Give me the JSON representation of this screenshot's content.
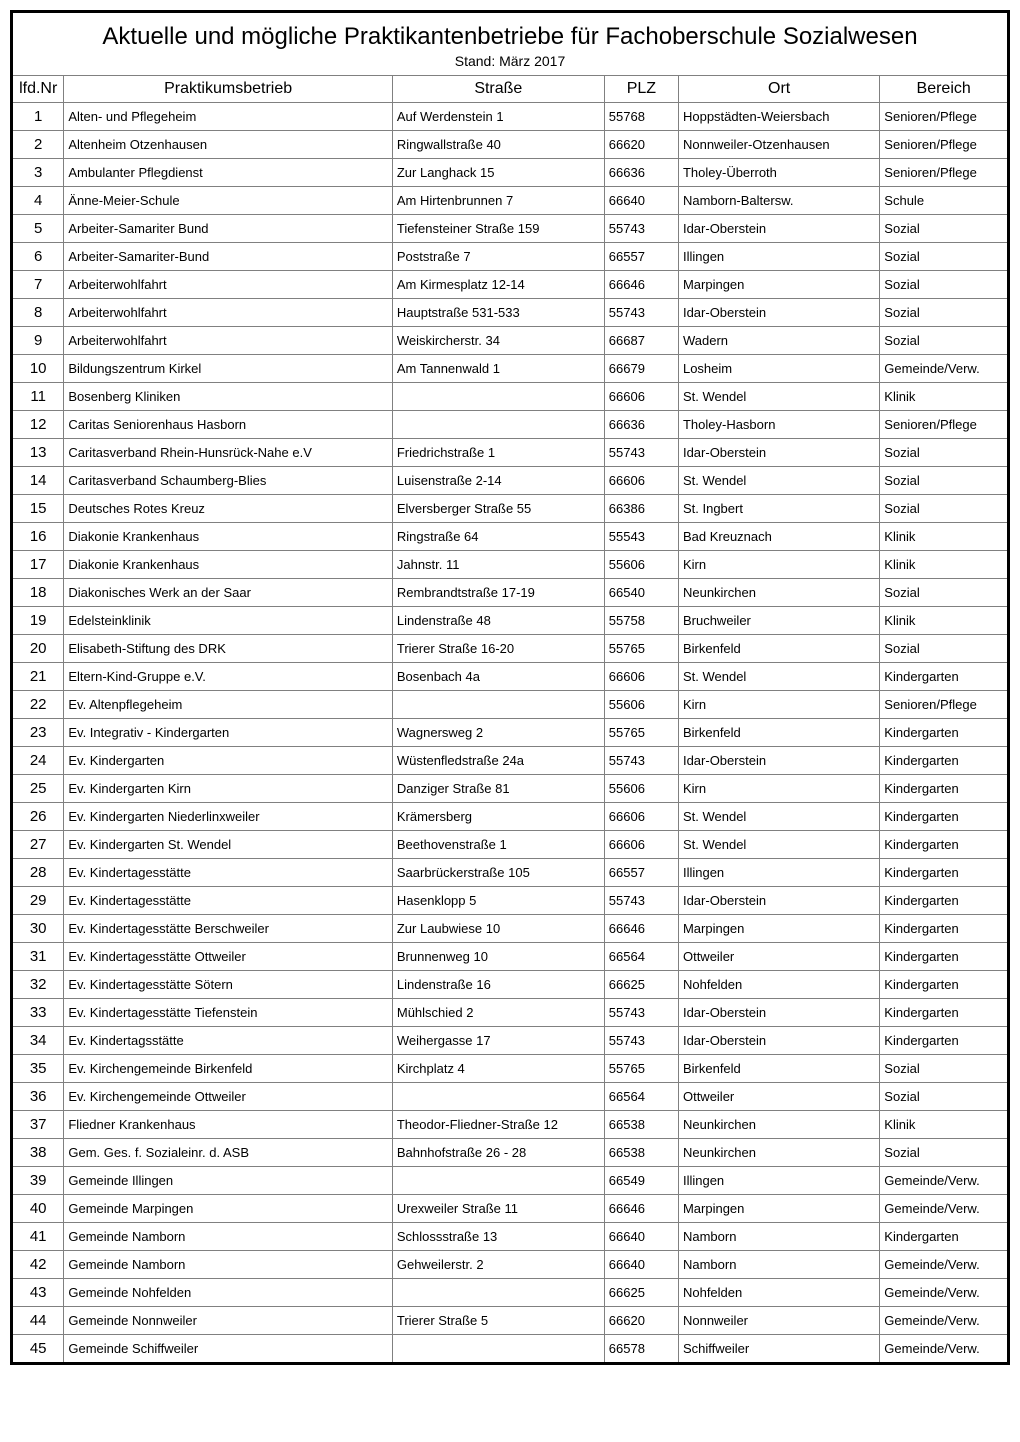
{
  "title": "Aktuelle und mögliche Praktikantenbetriebe für Fachoberschule Sozialwesen",
  "subtitle": "Stand: März 2017",
  "columns": {
    "nr": "lfd.Nr",
    "name": "Praktikumsbetrieb",
    "street": "Straße",
    "plz": "PLZ",
    "ort": "Ort",
    "bereich": "Bereich"
  },
  "rows": [
    {
      "nr": "1",
      "name": "Alten- und Pflegeheim",
      "street": "Auf Werdenstein 1",
      "plz": "55768",
      "ort": "Hoppstädten-Weiersbach",
      "bereich": "Senioren/Pflege"
    },
    {
      "nr": "2",
      "name": "Altenheim Otzenhausen",
      "street": "Ringwallstraße 40",
      "plz": "66620",
      "ort": "Nonnweiler-Otzenhausen",
      "bereich": "Senioren/Pflege"
    },
    {
      "nr": "3",
      "name": "Ambulanter Pflegdienst",
      "street": "Zur Langhack 15",
      "plz": "66636",
      "ort": "Tholey-Überroth",
      "bereich": "Senioren/Pflege"
    },
    {
      "nr": "4",
      "name": "Änne-Meier-Schule",
      "street": "Am Hirtenbrunnen 7",
      "plz": "66640",
      "ort": "Namborn-Baltersw.",
      "bereich": "Schule"
    },
    {
      "nr": "5",
      "name": "Arbeiter-Samariter Bund",
      "street": "Tiefensteiner Straße 159",
      "plz": "55743",
      "ort": "Idar-Oberstein",
      "bereich": "Sozial"
    },
    {
      "nr": "6",
      "name": "Arbeiter-Samariter-Bund",
      "street": "Poststraße 7",
      "plz": "66557",
      "ort": "Illingen",
      "bereich": "Sozial"
    },
    {
      "nr": "7",
      "name": "Arbeiterwohlfahrt",
      "street": "Am Kirmesplatz 12-14",
      "plz": "66646",
      "ort": "Marpingen",
      "bereich": "Sozial"
    },
    {
      "nr": "8",
      "name": "Arbeiterwohlfahrt",
      "street": "Hauptstraße 531-533",
      "plz": "55743",
      "ort": "Idar-Oberstein",
      "bereich": "Sozial"
    },
    {
      "nr": "9",
      "name": "Arbeiterwohlfahrt",
      "street": "Weiskircherstr. 34",
      "plz": "66687",
      "ort": "Wadern",
      "bereich": "Sozial"
    },
    {
      "nr": "10",
      "name": "Bildungszentrum Kirkel",
      "street": "Am Tannenwald 1",
      "plz": "66679",
      "ort": "Losheim",
      "bereich": "Gemeinde/Verw."
    },
    {
      "nr": "11",
      "name": "Bosenberg Kliniken",
      "street": "",
      "plz": "66606",
      "ort": "St. Wendel",
      "bereich": "Klinik"
    },
    {
      "nr": "12",
      "name": "Caritas Seniorenhaus Hasborn",
      "street": "",
      "plz": "66636",
      "ort": "Tholey-Hasborn",
      "bereich": "Senioren/Pflege"
    },
    {
      "nr": "13",
      "name": "Caritasverband Rhein-Hunsrück-Nahe e.V",
      "street": "Friedrichstraße 1",
      "plz": "55743",
      "ort": "Idar-Oberstein",
      "bereich": "Sozial"
    },
    {
      "nr": "14",
      "name": "Caritasverband Schaumberg-Blies",
      "street": "Luisenstraße 2-14",
      "plz": "66606",
      "ort": "St. Wendel",
      "bereich": "Sozial"
    },
    {
      "nr": "15",
      "name": "Deutsches Rotes Kreuz",
      "street": "Elversberger Straße 55",
      "plz": "66386",
      "ort": "St. Ingbert",
      "bereich": "Sozial"
    },
    {
      "nr": "16",
      "name": "Diakonie Krankenhaus",
      "street": "Ringstraße 64",
      "plz": "55543",
      "ort": "Bad Kreuznach",
      "bereich": "Klinik"
    },
    {
      "nr": "17",
      "name": "Diakonie Krankenhaus",
      "street": "Jahnstr. 11",
      "plz": "55606",
      "ort": "Kirn",
      "bereich": "Klinik"
    },
    {
      "nr": "18",
      "name": "Diakonisches Werk an der Saar",
      "street": "Rembrandtstraße 17-19",
      "plz": "66540",
      "ort": "Neunkirchen",
      "bereich": "Sozial"
    },
    {
      "nr": "19",
      "name": "Edelsteinklinik",
      "street": "Lindenstraße 48",
      "plz": "55758",
      "ort": "Bruchweiler",
      "bereich": "Klinik"
    },
    {
      "nr": "20",
      "name": "Elisabeth-Stiftung des DRK",
      "street": "Trierer Straße 16-20",
      "plz": "55765",
      "ort": "Birkenfeld",
      "bereich": "Sozial"
    },
    {
      "nr": "21",
      "name": "Eltern-Kind-Gruppe e.V.",
      "street": "Bosenbach 4a",
      "plz": "66606",
      "ort": "St. Wendel",
      "bereich": "Kindergarten"
    },
    {
      "nr": "22",
      "name": "Ev. Altenpflegeheim",
      "street": "",
      "plz": "55606",
      "ort": "Kirn",
      "bereich": "Senioren/Pflege"
    },
    {
      "nr": "23",
      "name": "Ev. Integrativ - Kindergarten",
      "street": "Wagnersweg 2",
      "plz": "55765",
      "ort": "Birkenfeld",
      "bereich": "Kindergarten"
    },
    {
      "nr": "24",
      "name": "Ev. Kindergarten",
      "street": "Wüstenfledstraße 24a",
      "plz": "55743",
      "ort": "Idar-Oberstein",
      "bereich": "Kindergarten"
    },
    {
      "nr": "25",
      "name": "Ev. Kindergarten Kirn",
      "street": "Danziger Straße 81",
      "plz": "55606",
      "ort": "Kirn",
      "bereich": "Kindergarten"
    },
    {
      "nr": "26",
      "name": "Ev. Kindergarten Niederlinxweiler",
      "street": "Krämersberg",
      "plz": "66606",
      "ort": "St. Wendel",
      "bereich": "Kindergarten"
    },
    {
      "nr": "27",
      "name": "Ev. Kindergarten St. Wendel",
      "street": "Beethovenstraße 1",
      "plz": "66606",
      "ort": "St. Wendel",
      "bereich": "Kindergarten"
    },
    {
      "nr": "28",
      "name": "Ev. Kindertagesstätte",
      "street": "Saarbrückerstraße 105",
      "plz": "66557",
      "ort": "Illingen",
      "bereich": "Kindergarten"
    },
    {
      "nr": "29",
      "name": "Ev. Kindertagesstätte",
      "street": "Hasenklopp 5",
      "plz": "55743",
      "ort": "Idar-Oberstein",
      "bereich": "Kindergarten"
    },
    {
      "nr": "30",
      "name": "Ev. Kindertagesstätte Berschweiler",
      "street": "Zur Laubwiese 10",
      "plz": "66646",
      "ort": "Marpingen",
      "bereich": "Kindergarten"
    },
    {
      "nr": "31",
      "name": "Ev. Kindertagesstätte Ottweiler",
      "street": "Brunnenweg 10",
      "plz": "66564",
      "ort": "Ottweiler",
      "bereich": "Kindergarten"
    },
    {
      "nr": "32",
      "name": "Ev. Kindertagesstätte Sötern",
      "street": "Lindenstraße 16",
      "plz": "66625",
      "ort": "Nohfelden",
      "bereich": "Kindergarten"
    },
    {
      "nr": "33",
      "name": "Ev. Kindertagesstätte Tiefenstein",
      "street": "Mühlschied 2",
      "plz": "55743",
      "ort": "Idar-Oberstein",
      "bereich": "Kindergarten"
    },
    {
      "nr": "34",
      "name": "Ev. Kindertagsstätte",
      "street": "Weihergasse 17",
      "plz": "55743",
      "ort": "Idar-Oberstein",
      "bereich": "Kindergarten"
    },
    {
      "nr": "35",
      "name": "Ev. Kirchengemeinde Birkenfeld",
      "street": "Kirchplatz 4",
      "plz": "55765",
      "ort": "Birkenfeld",
      "bereich": "Sozial"
    },
    {
      "nr": "36",
      "name": "Ev. Kirchengemeinde Ottweiler",
      "street": "",
      "plz": "66564",
      "ort": "Ottweiler",
      "bereich": "Sozial"
    },
    {
      "nr": "37",
      "name": "Fliedner Krankenhaus",
      "street": "Theodor-Fliedner-Straße 12",
      "plz": "66538",
      "ort": "Neunkirchen",
      "bereich": "Klinik"
    },
    {
      "nr": "38",
      "name": "Gem. Ges. f. Sozialeinr. d. ASB",
      "street": "Bahnhofstraße 26 - 28",
      "plz": "66538",
      "ort": "Neunkirchen",
      "bereich": "Sozial"
    },
    {
      "nr": "39",
      "name": "Gemeinde Illingen",
      "street": "",
      "plz": "66549",
      "ort": "Illingen",
      "bereich": "Gemeinde/Verw."
    },
    {
      "nr": "40",
      "name": "Gemeinde Marpingen",
      "street": "Urexweiler Straße 11",
      "plz": "66646",
      "ort": "Marpingen",
      "bereich": "Gemeinde/Verw."
    },
    {
      "nr": "41",
      "name": "Gemeinde Namborn",
      "street": "Schlossstraße 13",
      "plz": "66640",
      "ort": "Namborn",
      "bereich": "Kindergarten"
    },
    {
      "nr": "42",
      "name": "Gemeinde Namborn",
      "street": "Gehweilerstr. 2",
      "plz": "66640",
      "ort": "Namborn",
      "bereich": "Gemeinde/Verw."
    },
    {
      "nr": "43",
      "name": "Gemeinde Nohfelden",
      "street": "",
      "plz": "66625",
      "ort": "Nohfelden",
      "bereich": "Gemeinde/Verw."
    },
    {
      "nr": "44",
      "name": "Gemeinde Nonnweiler",
      "street": "Trierer Straße 5",
      "plz": "66620",
      "ort": "Nonnweiler",
      "bereich": "Gemeinde/Verw."
    },
    {
      "nr": "45",
      "name": "Gemeinde Schiffweiler",
      "street": "",
      "plz": "66578",
      "ort": "Schiffweiler",
      "bereich": "Gemeinde/Verw."
    }
  ]
}
